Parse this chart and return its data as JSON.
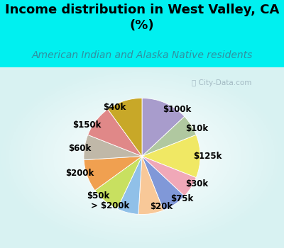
{
  "title": "Income distribution in West Valley, CA\n(%)",
  "subtitle": "American Indian and Alaska Native residents",
  "watermark": "City-Data.com",
  "labels": [
    "$100k",
    "$10k",
    "$125k",
    "$30k",
    "$75k",
    "$20k",
    "> $200k",
    "$50k",
    "$200k",
    "$60k",
    "$150k",
    "$40k"
  ],
  "values": [
    13,
    6,
    12,
    6,
    7,
    7,
    6,
    8,
    9,
    7,
    9,
    10
  ],
  "colors": [
    "#a89ccc",
    "#b0c8a0",
    "#f0e864",
    "#f0a8b8",
    "#8098d8",
    "#f8c898",
    "#90c0e8",
    "#c8e060",
    "#f0a050",
    "#c0b8a8",
    "#e08888",
    "#c8a828"
  ],
  "bg_color_top": "#00f0f0",
  "title_fontsize": 13,
  "subtitle_fontsize": 10,
  "label_fontsize": 8.5,
  "startangle": 90
}
